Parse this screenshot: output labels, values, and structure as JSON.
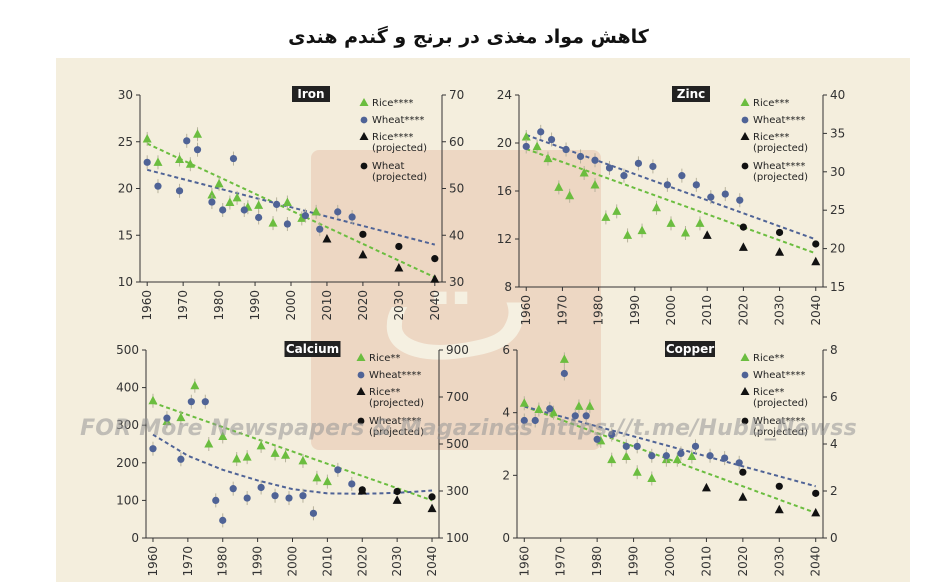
{
  "title": "کاهش مواد مغذی در برنج و گندم هندی",
  "watermark": "FOR More Newspapers & Magazines https://t.me/Hubb_Newss",
  "colors": {
    "rice": "#6bbd3f",
    "wheat": "#4f6396",
    "projected": "#111111",
    "panel_bg": "#f4eedd",
    "title_box": "#222222",
    "errorbar": "#b7b29c"
  },
  "chart_data": [
    {
      "type": "scatter",
      "title": "Iron",
      "x_ticks": [
        "1960",
        "1970",
        "1980",
        "1990",
        "2000",
        "2010",
        "2020",
        "2030",
        "2040"
      ],
      "xlim": [
        1958,
        2042
      ],
      "y_left": {
        "ticks": [
          "10",
          "15",
          "20",
          "25",
          "30"
        ],
        "lim": [
          10,
          30
        ]
      },
      "y_right": {
        "ticks": [
          "30",
          "40",
          "50",
          "60",
          "70"
        ],
        "lim": [
          30,
          70
        ]
      },
      "legend": [
        "Rice****",
        "Wheat****",
        "Rice****\n(projected)",
        "Wheat\n(projected)"
      ],
      "series": [
        {
          "kind": "rice",
          "x": [
            1960,
            1963,
            1969,
            1972,
            1974,
            1978,
            1980,
            1983,
            1985,
            1988,
            1991,
            1995,
            1999,
            2003,
            2007
          ],
          "y": [
            25.3,
            22.8,
            23.1,
            22.6,
            25.8,
            19.3,
            20.5,
            18.5,
            19.0,
            18.0,
            18.2,
            16.3,
            18.5,
            16.8,
            17.5
          ]
        },
        {
          "kind": "wheat",
          "x": [
            1960,
            1963,
            1969,
            1971,
            1974,
            1978,
            1981,
            1984,
            1987,
            1991,
            1996,
            1999,
            2004,
            2008,
            2013,
            2017
          ],
          "y": [
            55.6,
            50.5,
            49.5,
            60.2,
            58.3,
            47.1,
            45.4,
            56.4,
            45.4,
            43.8,
            46.6,
            42.4,
            44.2,
            41.3,
            45.0,
            43.9
          ]
        },
        {
          "kind": "rice_proj",
          "x": [
            2010,
            2020,
            2030,
            2040
          ],
          "y": [
            14.6,
            12.9,
            11.5,
            10.3
          ]
        },
        {
          "kind": "wheat_proj",
          "x": [
            2020,
            2030,
            2040
          ],
          "y": [
            40.2,
            37.6,
            35.0
          ]
        }
      ],
      "trends": [
        {
          "kind": "rice",
          "from": [
            1960,
            24.8
          ],
          "to": [
            2040,
            10.5
          ]
        },
        {
          "kind": "wheat",
          "from": [
            1960,
            54.0
          ],
          "to": [
            2040,
            38.0
          ]
        }
      ]
    },
    {
      "type": "scatter",
      "title": "Zinc",
      "x_ticks": [
        "1960",
        "1970",
        "1980",
        "1990",
        "2000",
        "2010",
        "2020",
        "2030",
        "2040"
      ],
      "xlim": [
        1958,
        2042
      ],
      "y_left": {
        "ticks": [
          "8",
          "12",
          "16",
          "20",
          "24"
        ],
        "lim": [
          8,
          24
        ]
      },
      "y_right": {
        "ticks": [
          "15",
          "20",
          "25",
          "30",
          "35",
          "40"
        ],
        "lim": [
          15,
          40
        ]
      },
      "legend": [
        "Rice***",
        "Wheat****",
        "Rice***\n(projected)",
        "Wheat****\n(projected)"
      ],
      "series": [
        {
          "kind": "rice",
          "x": [
            1960,
            1963,
            1966,
            1969,
            1972,
            1976,
            1979,
            1982,
            1985,
            1988,
            1992,
            1996,
            2000,
            2004,
            2008
          ],
          "y": [
            20.5,
            19.7,
            18.7,
            16.3,
            15.6,
            17.5,
            16.5,
            13.8,
            14.3,
            12.3,
            12.7,
            14.6,
            13.3,
            12.5,
            13.3
          ]
        },
        {
          "kind": "wheat",
          "x": [
            1960,
            1964,
            1967,
            1971,
            1975,
            1979,
            1983,
            1987,
            1991,
            1995,
            1999,
            2003,
            2007,
            2011,
            2015,
            2019
          ],
          "y": [
            33.3,
            35.2,
            34.2,
            32.9,
            32.0,
            31.5,
            30.5,
            29.5,
            31.1,
            30.7,
            28.3,
            29.5,
            28.3,
            26.7,
            27.1,
            26.3
          ]
        },
        {
          "kind": "rice_proj",
          "x": [
            2010,
            2020,
            2030,
            2040
          ],
          "y": [
            12.3,
            11.3,
            10.9,
            10.1
          ]
        },
        {
          "kind": "wheat_proj",
          "x": [
            2020,
            2030,
            2040
          ],
          "y": [
            22.8,
            22.1,
            20.6
          ]
        }
      ],
      "trends": [
        {
          "kind": "rice",
          "from": [
            1960,
            19.5
          ],
          "to": [
            2040,
            10.8
          ]
        },
        {
          "kind": "wheat",
          "from": [
            1960,
            34.8
          ],
          "to": [
            2040,
            21.2
          ]
        }
      ]
    },
    {
      "type": "scatter",
      "title": "Calcium",
      "x_ticks": [
        "1960",
        "1970",
        "1980",
        "1990",
        "2000",
        "2010",
        "2020",
        "2030",
        "2040"
      ],
      "xlim": [
        1958,
        2042
      ],
      "y_left": {
        "ticks": [
          "0",
          "100",
          "200",
          "300",
          "400",
          "500"
        ],
        "lim": [
          0,
          500
        ]
      },
      "y_right": {
        "ticks": [
          "100",
          "300",
          "500",
          "700",
          "900"
        ],
        "lim": [
          100,
          900
        ]
      },
      "legend": [
        "Rice**",
        "Wheat****",
        "Rice**\n(projected)",
        "Wheat****\n(projected)"
      ],
      "series": [
        {
          "kind": "rice",
          "x": [
            1960,
            1964,
            1968,
            1972,
            1976,
            1980,
            1984,
            1987,
            1991,
            1995,
            1998,
            2003,
            2007,
            2010
          ],
          "y": [
            365,
            310,
            320,
            405,
            250,
            270,
            210,
            215,
            245,
            225,
            220,
            205,
            160,
            150
          ]
        },
        {
          "kind": "wheat",
          "x": [
            1960,
            1964,
            1968,
            1971,
            1975,
            1978,
            1980,
            1983,
            1987,
            1991,
            1995,
            1999,
            2003,
            2006,
            2013,
            2017
          ],
          "y": [
            480,
            610,
            435,
            680,
            680,
            260,
            175,
            310,
            270,
            315,
            280,
            270,
            280,
            205,
            390,
            330
          ]
        },
        {
          "kind": "rice_proj",
          "x": [
            2020,
            2030,
            2040
          ],
          "y": [
            125,
            100,
            78
          ]
        },
        {
          "kind": "wheat_proj",
          "x": [
            2020,
            2030,
            2040
          ],
          "y": [
            305,
            298,
            275
          ]
        }
      ],
      "trends": [
        {
          "kind": "rice",
          "from": [
            1960,
            360
          ],
          "to": [
            2040,
            100
          ]
        },
        {
          "kind": "wheat_curve",
          "points": [
            [
              1960,
              540
            ],
            [
              1970,
              450
            ],
            [
              1980,
              390
            ],
            [
              1990,
              345
            ],
            [
              2000,
              308
            ],
            [
              2010,
              290
            ],
            [
              2020,
              288
            ],
            [
              2030,
              292
            ],
            [
              2040,
              302
            ]
          ]
        }
      ]
    },
    {
      "type": "scatter",
      "title": "Copper",
      "x_ticks": [
        "1960",
        "1970",
        "1980",
        "1990",
        "2000",
        "2010",
        "2020",
        "2030",
        "2040"
      ],
      "xlim": [
        1958,
        2042
      ],
      "y_left": {
        "ticks": [
          "0",
          "2",
          "4",
          "6"
        ],
        "lim": [
          0,
          6
        ]
      },
      "y_right": {
        "ticks": [
          "0",
          "2",
          "4",
          "6",
          "8"
        ],
        "lim": [
          0,
          8
        ]
      },
      "legend": [
        "Rice**",
        "Wheat****",
        "Rice**\n(projected)",
        "Wheat****\n(projected)"
      ],
      "series": [
        {
          "kind": "rice",
          "x": [
            1960,
            1964,
            1968,
            1971,
            1975,
            1978,
            1981,
            1984,
            1988,
            1991,
            1995,
            1999,
            2002,
            2006
          ],
          "y": [
            4.3,
            4.1,
            4.0,
            5.7,
            4.2,
            4.2,
            3.1,
            2.5,
            2.6,
            2.1,
            1.9,
            2.5,
            2.5,
            2.6
          ]
        },
        {
          "kind": "wheat",
          "x": [
            1960,
            1963,
            1967,
            1971,
            1974,
            1977,
            1980,
            1984,
            1988,
            1991,
            1995,
            1999,
            2003,
            2007,
            2011,
            2015,
            2019
          ],
          "y": [
            5.0,
            5.0,
            5.5,
            7.0,
            5.2,
            5.2,
            4.2,
            4.4,
            3.9,
            3.9,
            3.5,
            3.5,
            3.6,
            3.9,
            3.5,
            3.4,
            3.2
          ]
        },
        {
          "kind": "rice_proj",
          "x": [
            2010,
            2020,
            2030,
            2040
          ],
          "y": [
            1.6,
            1.3,
            0.9,
            0.8
          ]
        },
        {
          "kind": "wheat_proj",
          "x": [
            2020,
            2030,
            2040
          ],
          "y": [
            2.8,
            2.2,
            1.9
          ]
        }
      ],
      "trends": [
        {
          "kind": "rice",
          "from": [
            1960,
            4.2
          ],
          "to": [
            2040,
            0.8
          ]
        },
        {
          "kind": "wheat",
          "from": [
            1960,
            5.6
          ],
          "to": [
            2040,
            2.2
          ]
        }
      ]
    }
  ]
}
